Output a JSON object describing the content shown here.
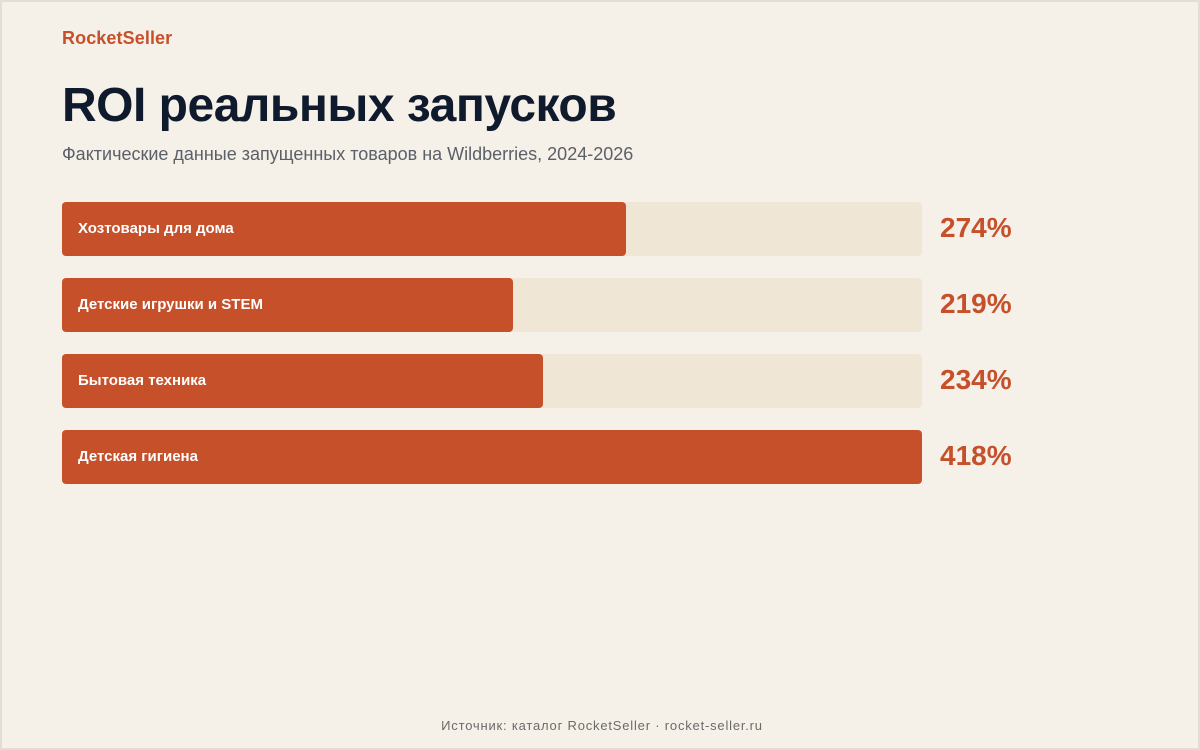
{
  "brand": "RocketSeller",
  "title": "ROI реальных запусков",
  "subtitle": "Фактические данные запущенных товаров на Wildberries, 2024-2026",
  "footer": "Источник: каталог RocketSeller · rocket-seller.ru",
  "colors": {
    "accent": "#c5502a",
    "track": "#efe6d6",
    "background": "#f5f0e8",
    "title": "#0f1b2d"
  },
  "chart_data": {
    "type": "bar",
    "orientation": "horizontal",
    "categories": [
      "Хозтовары для дома",
      "Детские игрушки и STEM",
      "Бытовая техника",
      "Детская гигиена"
    ],
    "values": [
      274,
      219,
      234,
      418
    ],
    "value_labels": [
      "274%",
      "219%",
      "234%",
      "418%"
    ],
    "unit": "%",
    "xlim": [
      0,
      418
    ],
    "grid": false,
    "legend": "none"
  }
}
